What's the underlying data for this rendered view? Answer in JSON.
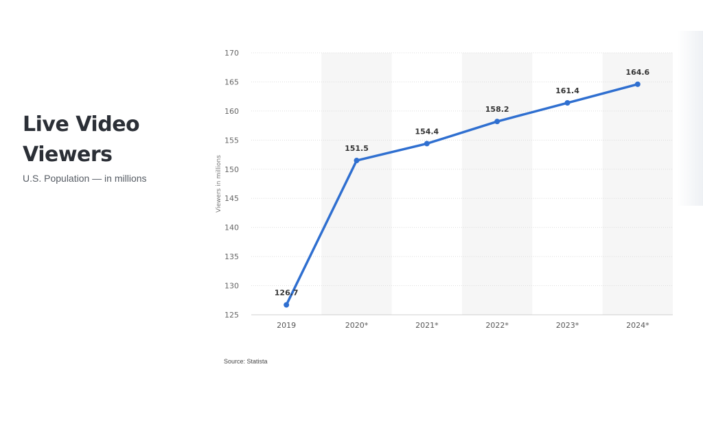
{
  "header": {
    "title_line1": "Live Video",
    "title_line2": "Viewers",
    "subtitle": "U.S. Population — in millions"
  },
  "source": "Source: Statista",
  "chart_data": {
    "type": "line",
    "categories": [
      "2019",
      "2020*",
      "2021*",
      "2022*",
      "2023*",
      "2024*"
    ],
    "values": [
      126.7,
      151.5,
      154.4,
      158.2,
      161.4,
      164.6
    ],
    "data_labels": [
      "126.7",
      "151.5",
      "154.4",
      "158.2",
      "161.4",
      "164.6"
    ],
    "ylabel": "Viewers in millions",
    "ylim": [
      125,
      170
    ],
    "yticks": [
      125,
      130,
      135,
      140,
      145,
      150,
      155,
      160,
      165,
      170
    ],
    "grid": true,
    "line_color": "#2f6fd0",
    "band_color": "#f6f6f6"
  }
}
